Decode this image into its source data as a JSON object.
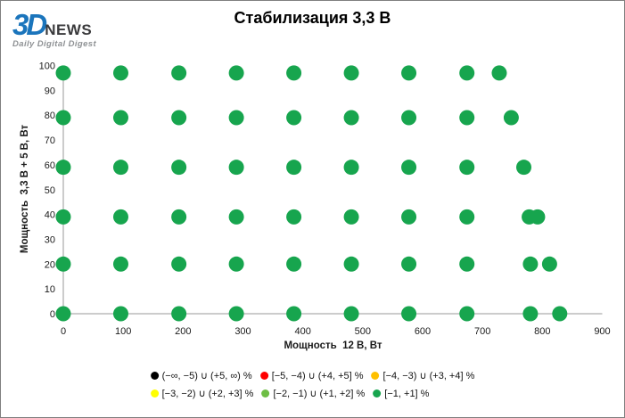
{
  "logo": {
    "brand": "3D",
    "brand_suffix": "NEWS",
    "tagline": "Daily Digital Digest"
  },
  "colors": {
    "axis": "#999999",
    "tick_text": "#1a1a1a",
    "dot_green": "#17a54e",
    "logo_blue": "#1b75bc",
    "logo_dark": "#3a3a3c",
    "logo_gray": "#8e9194"
  },
  "chart_data": {
    "type": "scatter",
    "title": "Стабилизация 3,3 В",
    "xlabel": "Мощность  12 В, Вт",
    "ylabel": "Мощность  3,3 В + 5 В, Вт",
    "xlim": [
      0,
      900
    ],
    "ylim": [
      0,
      100
    ],
    "xticks": [
      0,
      100,
      200,
      300,
      400,
      500,
      600,
      700,
      800,
      900
    ],
    "yticks": [
      0,
      10,
      20,
      30,
      40,
      50,
      60,
      70,
      80,
      90,
      100
    ],
    "grid": false,
    "legend_position": "bottom",
    "series": [
      {
        "name": "[−1, +1] %",
        "color": "#17a54e",
        "points": [
          [
            0,
            97
          ],
          [
            96,
            97
          ],
          [
            193,
            97
          ],
          [
            289,
            97
          ],
          [
            385,
            97
          ],
          [
            481,
            97
          ],
          [
            577,
            97
          ],
          [
            674,
            97
          ],
          [
            728,
            97
          ],
          [
            0,
            79
          ],
          [
            96,
            79
          ],
          [
            193,
            79
          ],
          [
            289,
            79
          ],
          [
            385,
            79
          ],
          [
            481,
            79
          ],
          [
            577,
            79
          ],
          [
            674,
            79
          ],
          [
            748,
            79
          ],
          [
            0,
            59
          ],
          [
            96,
            59
          ],
          [
            193,
            59
          ],
          [
            289,
            59
          ],
          [
            385,
            59
          ],
          [
            481,
            59
          ],
          [
            577,
            59
          ],
          [
            674,
            59
          ],
          [
            769,
            59
          ],
          [
            0,
            39
          ],
          [
            96,
            39
          ],
          [
            193,
            39
          ],
          [
            289,
            39
          ],
          [
            385,
            39
          ],
          [
            481,
            39
          ],
          [
            577,
            39
          ],
          [
            674,
            39
          ],
          [
            778,
            39
          ],
          [
            792,
            39
          ],
          [
            0,
            20
          ],
          [
            96,
            20
          ],
          [
            193,
            20
          ],
          [
            289,
            20
          ],
          [
            385,
            20
          ],
          [
            481,
            20
          ],
          [
            577,
            20
          ],
          [
            674,
            20
          ],
          [
            780,
            20
          ],
          [
            812,
            20
          ],
          [
            0,
            0
          ],
          [
            96,
            0
          ],
          [
            193,
            0
          ],
          [
            289,
            0
          ],
          [
            385,
            0
          ],
          [
            481,
            0
          ],
          [
            577,
            0
          ],
          [
            674,
            0
          ],
          [
            780,
            0
          ],
          [
            829,
            0
          ]
        ]
      }
    ],
    "legend": [
      {
        "label": "(−∞, −5) ∪ (+5, ∞) %",
        "color": "#000000"
      },
      {
        "label": "[−5, −4) ∪ (+4, +5] %",
        "color": "#ff0000"
      },
      {
        "label": "[−4, −3) ∪ (+3, +4] %",
        "color": "#ffc000"
      },
      {
        "label": "[−3, −2) ∪ (+2, +3] %",
        "color": "#ffff00"
      },
      {
        "label": "[−2, −1) ∪ (+1, +2] %",
        "color": "#6ebe45"
      },
      {
        "label": "[−1, +1] %",
        "color": "#17a54e"
      }
    ]
  }
}
